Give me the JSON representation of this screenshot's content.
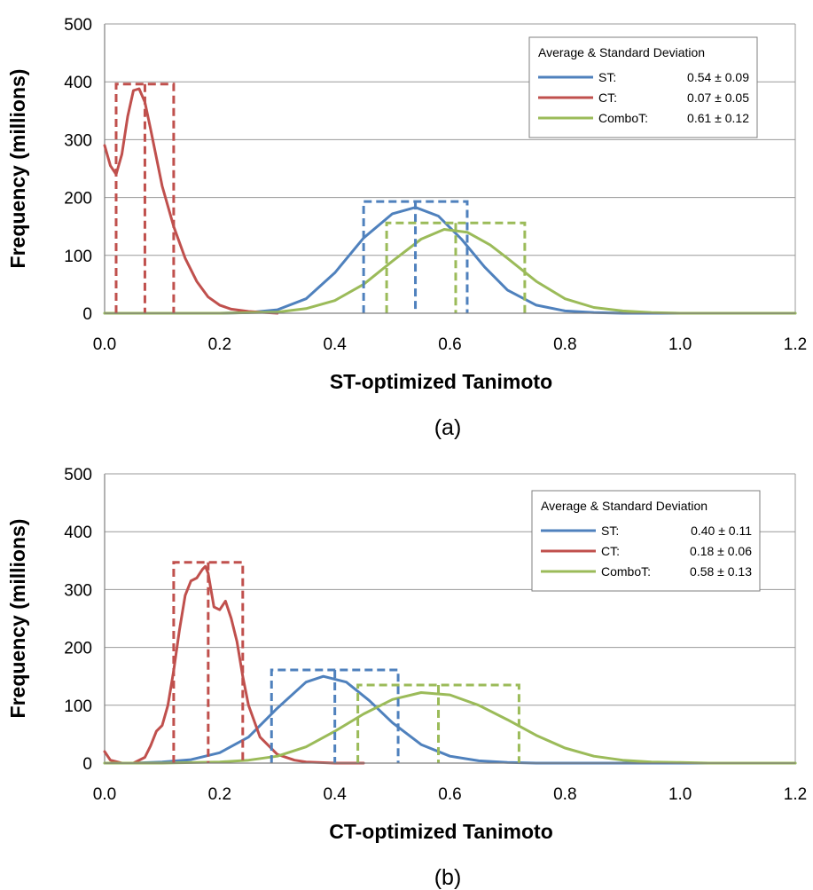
{
  "chart_data": [
    {
      "type": "line",
      "panel_label": "(a)",
      "xlabel": "ST-optimized Tanimoto",
      "ylabel": "Frequency (millions)",
      "xlim": [
        0,
        1.2
      ],
      "ylim": [
        0,
        500
      ],
      "xticks": [
        "0.0",
        "0.2",
        "0.4",
        "0.6",
        "0.8",
        "1.0",
        "1.2"
      ],
      "yticks": [
        "0",
        "100",
        "200",
        "300",
        "400",
        "500"
      ],
      "grid": "horizontal",
      "legend": {
        "title": "Average & Standard Deviation",
        "placement": "top-right",
        "entries": [
          {
            "label": "ST:",
            "stat": "0.54 ± 0.09",
            "color": "#4f81bd"
          },
          {
            "label": "CT:",
            "stat": "0.07 ± 0.05",
            "color": "#c0504d"
          },
          {
            "label": "ComboT:",
            "stat": "0.61 ± 0.12",
            "color": "#9bbb59"
          }
        ]
      },
      "series": [
        {
          "name": "ST",
          "color": "#4f81bd",
          "x": [
            0.0,
            0.2,
            0.25,
            0.3,
            0.35,
            0.4,
            0.45,
            0.5,
            0.54,
            0.58,
            0.62,
            0.66,
            0.7,
            0.75,
            0.8,
            0.85,
            0.9,
            1.0,
            1.2
          ],
          "y": [
            0,
            0,
            1,
            6,
            25,
            70,
            130,
            172,
            183,
            168,
            128,
            80,
            40,
            14,
            4,
            1,
            0,
            0,
            0
          ],
          "box": {
            "x0": 0.45,
            "x1": 0.63,
            "mean": 0.54,
            "height": 193
          }
        },
        {
          "name": "CT",
          "color": "#c0504d",
          "x": [
            0.0,
            0.01,
            0.02,
            0.03,
            0.04,
            0.05,
            0.06,
            0.07,
            0.08,
            0.1,
            0.12,
            0.14,
            0.16,
            0.18,
            0.2,
            0.22,
            0.25,
            0.28,
            0.3
          ],
          "y": [
            290,
            255,
            240,
            275,
            340,
            385,
            388,
            365,
            318,
            220,
            150,
            95,
            55,
            28,
            14,
            7,
            3,
            1,
            0
          ],
          "box": {
            "x0": 0.02,
            "x1": 0.12,
            "mean": 0.07,
            "height": 396
          }
        },
        {
          "name": "ComboT",
          "color": "#9bbb59",
          "x": [
            0.0,
            0.2,
            0.3,
            0.35,
            0.4,
            0.45,
            0.5,
            0.55,
            0.59,
            0.63,
            0.67,
            0.7,
            0.75,
            0.8,
            0.85,
            0.9,
            0.95,
            1.0,
            1.1,
            1.2
          ],
          "y": [
            0,
            0,
            2,
            8,
            22,
            50,
            90,
            128,
            145,
            140,
            118,
            95,
            55,
            25,
            10,
            4,
            1,
            0,
            0,
            0
          ],
          "box": {
            "x0": 0.49,
            "x1": 0.73,
            "mean": 0.61,
            "height": 156
          }
        }
      ]
    },
    {
      "type": "line",
      "panel_label": "(b)",
      "xlabel": "CT-optimized Tanimoto",
      "ylabel": "Frequency (millions)",
      "xlim": [
        0,
        1.2
      ],
      "ylim": [
        0,
        500
      ],
      "xticks": [
        "0.0",
        "0.2",
        "0.4",
        "0.6",
        "0.8",
        "1.0",
        "1.2"
      ],
      "yticks": [
        "0",
        "100",
        "200",
        "300",
        "400",
        "500"
      ],
      "grid": "horizontal",
      "legend": {
        "title": "Average & Standard Deviation",
        "placement": "top-right",
        "entries": [
          {
            "label": "ST:",
            "stat": "0.40 ± 0.11",
            "color": "#4f81bd"
          },
          {
            "label": "CT:",
            "stat": "0.18 ± 0.06",
            "color": "#c0504d"
          },
          {
            "label": "ComboT:",
            "stat": "0.58 ± 0.13",
            "color": "#9bbb59"
          }
        ]
      },
      "series": [
        {
          "name": "ST",
          "color": "#4f81bd",
          "x": [
            0.0,
            0.05,
            0.1,
            0.15,
            0.2,
            0.25,
            0.3,
            0.35,
            0.38,
            0.42,
            0.46,
            0.5,
            0.55,
            0.6,
            0.65,
            0.7,
            0.75,
            0.8,
            1.2
          ],
          "y": [
            0,
            0,
            2,
            6,
            18,
            45,
            95,
            140,
            150,
            140,
            108,
            70,
            32,
            12,
            4,
            1,
            0,
            0,
            0
          ],
          "box": {
            "x0": 0.29,
            "x1": 0.51,
            "mean": 0.4,
            "height": 161
          }
        },
        {
          "name": "CT",
          "color": "#c0504d",
          "x": [
            0.0,
            0.01,
            0.03,
            0.05,
            0.07,
            0.08,
            0.09,
            0.1,
            0.11,
            0.12,
            0.13,
            0.14,
            0.15,
            0.16,
            0.17,
            0.175,
            0.18,
            0.19,
            0.2,
            0.21,
            0.22,
            0.23,
            0.24,
            0.25,
            0.27,
            0.3,
            0.33,
            0.35,
            0.4,
            0.45
          ],
          "y": [
            20,
            5,
            0,
            0,
            10,
            30,
            55,
            65,
            100,
            160,
            230,
            290,
            315,
            320,
            335,
            340,
            328,
            270,
            265,
            280,
            250,
            210,
            150,
            100,
            45,
            15,
            5,
            2,
            0,
            0
          ],
          "box": {
            "x0": 0.12,
            "x1": 0.24,
            "mean": 0.18,
            "height": 347
          }
        },
        {
          "name": "ComboT",
          "color": "#9bbb59",
          "x": [
            0.0,
            0.1,
            0.2,
            0.25,
            0.3,
            0.35,
            0.4,
            0.45,
            0.5,
            0.55,
            0.6,
            0.65,
            0.7,
            0.75,
            0.8,
            0.85,
            0.9,
            0.95,
            1.0,
            1.05,
            1.1,
            1.2
          ],
          "y": [
            0,
            0,
            2,
            5,
            12,
            28,
            55,
            85,
            110,
            122,
            118,
            100,
            75,
            48,
            26,
            12,
            5,
            2,
            1,
            0,
            0,
            0
          ],
          "box": {
            "x0": 0.44,
            "x1": 0.72,
            "mean": 0.58,
            "height": 135
          }
        }
      ]
    }
  ]
}
